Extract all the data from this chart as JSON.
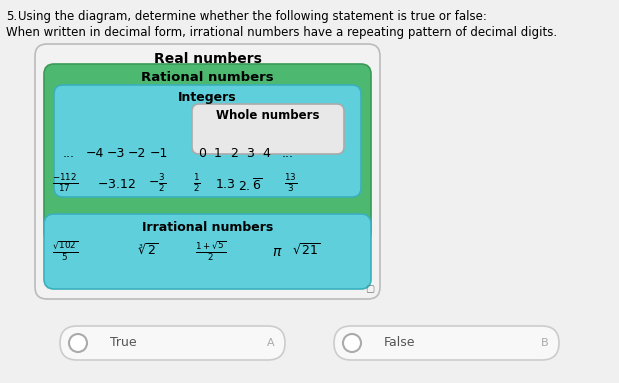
{
  "question_num": "5.",
  "question_line1": "Using the diagram, determine whether the following statement is true or false:",
  "question_line2": "When written in decimal form, irrational numbers have a repeating pattern of decimal digits.",
  "diagram_title": "Real numbers",
  "real_bg": "#f2f2f2",
  "real_border": "#bbbbbb",
  "rational_title": "Rational numbers",
  "rational_bg": "#4db870",
  "rational_border": "#3a9a58",
  "integers_title": "Integers",
  "integers_bg": "#5ecfdb",
  "integers_border": "#3ab0bc",
  "whole_title": "Whole numbers",
  "whole_bg": "#e8e8e8",
  "whole_border": "#aaaaaa",
  "irrational_title": "Irrational numbers",
  "irrational_bg": "#5ecfdb",
  "irrational_border": "#3ab0bc",
  "true_label": "True",
  "true_letter": "A",
  "false_label": "False",
  "false_letter": "B",
  "bg_color": "#f0f0f0"
}
